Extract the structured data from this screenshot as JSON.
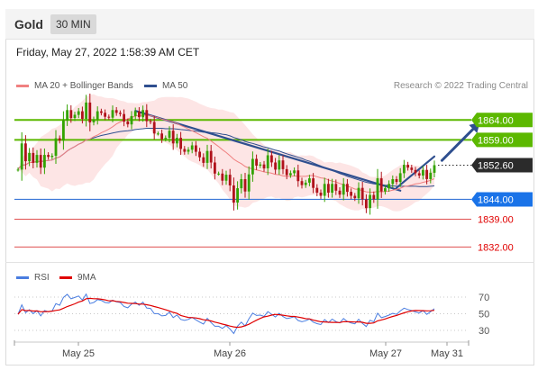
{
  "header": {
    "title": "Gold",
    "timeframe": "30 MIN"
  },
  "datetime": "Friday, May 27, 2022 1:58:39 AM CET",
  "credit": "Research © 2022 Trading Central",
  "colors": {
    "ma20": "#f08080",
    "ma50": "#2f4f8f",
    "bollinger_fill": "#fde0e0",
    "candle_up": "#33a300",
    "candle_down": "#b0121b",
    "resistance": "#5cb800",
    "pivot": "#3c78d8",
    "support": "#e05050",
    "current": "#2b2b2b",
    "rsi": "#4a7de0",
    "rsi_ma": "#e00000"
  },
  "legend": {
    "ma20": "MA 20 + Bollinger Bands",
    "ma50": "MA 50",
    "rsi": "RSI",
    "rsi_ma": "9MA"
  },
  "chart_data": [
    {
      "type": "candlestick",
      "ylim": [
        1828,
        1872
      ],
      "x_ticks": [
        "May 25",
        "May 26",
        "May 27",
        "May 31"
      ],
      "levels": [
        {
          "label": "1864.00",
          "value": 1864.0,
          "kind": "resistance"
        },
        {
          "label": "1859.00",
          "value": 1859.0,
          "kind": "resistance"
        },
        {
          "label": "1852.60",
          "value": 1852.6,
          "kind": "current"
        },
        {
          "label": "1844.00",
          "value": 1844.0,
          "kind": "pivot"
        },
        {
          "label": "1839.00",
          "value": 1839.0,
          "kind": "support"
        },
        {
          "label": "1832.00",
          "value": 1832.0,
          "kind": "support"
        }
      ],
      "close": [
        1851.5,
        1858.1,
        1853.6,
        1855.7,
        1853.2,
        1855.2,
        1852.0,
        1855.2,
        1854.7,
        1855.0,
        1859.4,
        1858.8,
        1863.9,
        1866.5,
        1864.5,
        1865.3,
        1866.2,
        1864.3,
        1868.4,
        1863.4,
        1864.1,
        1866.2,
        1865.8,
        1864.8,
        1864.6,
        1866.5,
        1865.8,
        1865.5,
        1863.6,
        1862.9,
        1865.0,
        1866.2,
        1864.7,
        1866.5,
        1863.7,
        1863.5,
        1860.6,
        1860.6,
        1859.2,
        1859.5,
        1861.3,
        1858.1,
        1859.5,
        1856.7,
        1856.0,
        1856.5,
        1857.6,
        1856.0,
        1854.6,
        1853.2,
        1856.2,
        1853.3,
        1850.5,
        1850.5,
        1848.7,
        1850.2,
        1847.5,
        1843.2,
        1846.8,
        1849.1,
        1846.0,
        1850.3,
        1854.2,
        1852.5,
        1852.8,
        1851.8,
        1855.1,
        1853.3,
        1851.5,
        1853.8,
        1851.6,
        1850.1,
        1850.6,
        1851.3,
        1848.6,
        1847.6,
        1848.2,
        1849.3,
        1846.9,
        1845.7,
        1844.9,
        1847.9,
        1845.7,
        1847.9,
        1846.2,
        1845.2,
        1847.9,
        1845.9,
        1844.9,
        1844.3,
        1846.9,
        1844.0,
        1841.8,
        1845.1,
        1844.0,
        1849.3,
        1846.0,
        1846.8,
        1847.9,
        1849.1,
        1848.4,
        1850.6,
        1852.7,
        1852.0,
        1851.4,
        1850.6,
        1850.0,
        1851.4,
        1849.1,
        1850.7,
        1852.6
      ],
      "ma20": [
        1851.6,
        1852.6,
        1852.7,
        1853.3,
        1853.3,
        1853.6,
        1853.5,
        1853.7,
        1853.8,
        1853.9,
        1854.4,
        1854.7,
        1855.4,
        1856.2,
        1856.8,
        1857.3,
        1857.9,
        1858.3,
        1859.0,
        1859.2,
        1859.8,
        1860.2,
        1860.8,
        1861.2,
        1861.7,
        1862.3,
        1863.0,
        1863.5,
        1863.9,
        1864.3,
        1864.6,
        1865.0,
        1865.1,
        1865.2,
        1865.2,
        1865.1,
        1864.8,
        1864.6,
        1864.2,
        1864.0,
        1863.8,
        1863.4,
        1863.1,
        1862.6,
        1862.2,
        1861.7,
        1861.3,
        1860.8,
        1860.3,
        1859.8,
        1859.4,
        1858.7,
        1858.0,
        1857.3,
        1856.5,
        1855.8,
        1855.0,
        1854.1,
        1853.5,
        1853.0,
        1852.3,
        1851.9,
        1851.7,
        1851.4,
        1851.2,
        1850.9,
        1850.8,
        1850.6,
        1850.3,
        1850.2,
        1849.9,
        1849.8,
        1849.8,
        1849.9,
        1849.8,
        1849.8,
        1849.8,
        1850.0,
        1850.0,
        1849.7,
        1849.4,
        1849.3,
        1848.9,
        1848.6,
        1848.4,
        1848.0,
        1847.7,
        1847.3,
        1847.0,
        1846.6,
        1846.5,
        1846.2,
        1845.9,
        1845.8,
        1845.8,
        1846.0,
        1845.9,
        1846.0,
        1846.1,
        1846.3,
        1846.5,
        1846.8,
        1847.2,
        1847.4,
        1847.6,
        1847.9,
        1848.0,
        1848.3,
        1848.5,
        1848.8,
        1849.2
      ],
      "ma50": [
        1851.6,
        1852.6,
        1852.7,
        1853.3,
        1853.3,
        1853.6,
        1853.5,
        1853.7,
        1853.8,
        1853.9,
        1854.4,
        1854.7,
        1855.4,
        1856.2,
        1856.8,
        1857.3,
        1857.9,
        1858.3,
        1859.0,
        1859.2,
        1859.5,
        1859.8,
        1860.1,
        1860.3,
        1860.5,
        1860.7,
        1860.9,
        1861.1,
        1861.2,
        1861.3,
        1861.4,
        1861.6,
        1861.7,
        1861.8,
        1861.9,
        1861.9,
        1861.9,
        1861.9,
        1861.9,
        1861.8,
        1861.8,
        1861.8,
        1861.7,
        1861.6,
        1861.5,
        1861.4,
        1861.3,
        1861.2,
        1861.1,
        1860.9,
        1861.0,
        1860.8,
        1860.7,
        1860.6,
        1860.4,
        1860.3,
        1860.0,
        1859.6,
        1859.3,
        1859.0,
        1858.6,
        1858.3,
        1858.1,
        1857.8,
        1857.5,
        1857.2,
        1857.0,
        1856.7,
        1856.4,
        1856.2,
        1855.8,
        1855.5,
        1855.2,
        1854.9,
        1854.6,
        1854.3,
        1853.9,
        1853.6,
        1853.2,
        1852.8,
        1852.4,
        1852.0,
        1851.6,
        1851.3,
        1850.9,
        1850.5,
        1850.2,
        1849.8,
        1849.5,
        1849.2,
        1848.9,
        1848.6,
        1848.3,
        1848.1,
        1847.9,
        1847.8,
        1847.7,
        1847.6,
        1847.5,
        1847.4,
        1847.3,
        1847.3,
        1847.3,
        1847.3,
        1847.3,
        1847.3,
        1847.2,
        1847.2,
        1847.2,
        1847.3,
        1847.4
      ],
      "bb_upper": [
        1851.6,
        1854.2,
        1855.7,
        1856.0,
        1857.1,
        1858.2,
        1859.7,
        1860.3,
        1860.9,
        1861.8,
        1862.1,
        1862.7,
        1863.4,
        1864.4,
        1866.0,
        1867.3,
        1868.0,
        1868.8,
        1869.8,
        1870.3,
        1870.5,
        1870.0,
        1869.9,
        1869.6,
        1869.5,
        1869.5,
        1869.2,
        1868.9,
        1868.7,
        1868.3,
        1868.3,
        1868.2,
        1868.2,
        1868.5,
        1868.5,
        1868.7,
        1868.9,
        1869.5,
        1869.7,
        1869.8,
        1869.8,
        1869.8,
        1869.7,
        1869.8,
        1869.6,
        1869.4,
        1869.0,
        1868.6,
        1868.1,
        1867.7,
        1867.3,
        1867.0,
        1866.9,
        1866.6,
        1866.6,
        1866.3,
        1866.0,
        1865.8,
        1864.8,
        1863.8,
        1862.7,
        1861.6,
        1860.4,
        1859.5,
        1858.6,
        1857.7,
        1857.0,
        1856.5,
        1856.4,
        1856.0,
        1855.9,
        1855.9,
        1855.9,
        1855.3,
        1855.0,
        1855.1,
        1855.0,
        1855.1,
        1854.9,
        1854.3,
        1853.9,
        1853.3,
        1853.4,
        1853.4,
        1853.1,
        1853.3,
        1853.0,
        1852.8,
        1852.5,
        1852.1,
        1851.7,
        1850.8,
        1850.4,
        1849.7,
        1849.6,
        1849.7,
        1849.6,
        1850.0,
        1850.7,
        1851.4,
        1852.0,
        1852.6,
        1852.8,
        1852.8,
        1852.7,
        1852.5,
        1852.4,
        1852.0,
        1851.6,
        1851.2,
        1850.8
      ],
      "bb_lower": [
        1851.6,
        1850.9,
        1849.8,
        1850.7,
        1849.6,
        1849.0,
        1847.3,
        1847.0,
        1846.7,
        1846.0,
        1846.7,
        1846.6,
        1847.4,
        1848.0,
        1847.6,
        1847.4,
        1847.7,
        1847.8,
        1848.2,
        1848.2,
        1849.0,
        1850.5,
        1851.7,
        1852.9,
        1853.8,
        1855.0,
        1856.9,
        1858.1,
        1859.0,
        1860.3,
        1860.9,
        1861.7,
        1862.0,
        1861.9,
        1861.9,
        1861.5,
        1860.6,
        1859.6,
        1858.7,
        1858.3,
        1857.8,
        1857.0,
        1856.4,
        1855.5,
        1854.8,
        1854.0,
        1853.5,
        1853.1,
        1852.6,
        1851.9,
        1851.5,
        1850.4,
        1849.1,
        1848.0,
        1846.4,
        1845.3,
        1844.0,
        1842.5,
        1842.2,
        1842.1,
        1841.9,
        1842.2,
        1843.1,
        1843.4,
        1843.8,
        1844.2,
        1844.6,
        1844.7,
        1844.3,
        1844.4,
        1844.0,
        1843.6,
        1843.7,
        1844.5,
        1844.7,
        1844.5,
        1844.7,
        1845.0,
        1845.1,
        1845.2,
        1845.0,
        1845.2,
        1844.4,
        1843.8,
        1843.6,
        1842.8,
        1842.3,
        1841.8,
        1841.4,
        1841.2,
        1841.2,
        1841.6,
        1841.4,
        1841.8,
        1841.9,
        1842.3,
        1842.3,
        1842.0,
        1841.6,
        1841.1,
        1841.0,
        1841.1,
        1841.6,
        1842.0,
        1842.6,
        1843.3,
        1843.6,
        1844.6,
        1845.4,
        1846.3,
        1847.5
      ],
      "trendlines": [
        {
          "from": {
            "index": 31,
            "price": 1866.3
          },
          "to": {
            "index": 101,
            "price": 1846.2
          }
        },
        {
          "from": {
            "index": 100,
            "price": 1846.9
          },
          "to": {
            "index": 110,
            "price": 1854.8
          }
        }
      ],
      "forecast_arrow": {
        "from": {
          "index": 112,
          "price": 1853.8
        },
        "to": {
          "index": 122,
          "price": 1863.4
        }
      }
    },
    {
      "type": "line",
      "ylim": [
        20,
        80
      ],
      "y_ticks": [
        70,
        50,
        30
      ],
      "series": [
        {
          "name": "RSI",
          "values": [
            49.3,
            60.7,
            51.2,
            54.8,
            50.1,
            53.7,
            47.4,
            53.8,
            52.5,
            53.2,
            62.1,
            60.2,
            69.7,
            73.2,
            68.0,
            69.6,
            71.3,
            66.4,
            73.6,
            62.2,
            63.5,
            67.0,
            66.0,
            63.5,
            63.0,
            66.2,
            64.3,
            63.5,
            58.7,
            57.1,
            61.6,
            64.0,
            60.2,
            64.0,
            56.9,
            56.4,
            50.1,
            50.1,
            47.4,
            48.0,
            51.9,
            45.4,
            48.5,
            43.2,
            42.0,
            43.2,
            45.6,
            42.6,
            40.0,
            37.6,
            44.5,
            39.4,
            35.0,
            35.0,
            32.4,
            35.8,
            31.6,
            26.2,
            35.1,
            40.0,
            35.3,
            43.9,
            50.8,
            47.9,
            48.4,
            46.8,
            52.5,
            49.3,
            46.1,
            50.4,
            46.7,
            44.2,
            45.1,
            46.4,
            41.9,
            40.5,
            41.6,
            43.6,
            39.9,
            38.1,
            37.0,
            43.0,
            39.3,
            43.5,
            40.6,
            39.0,
            44.3,
            40.7,
            38.9,
            37.9,
            43.4,
            38.3,
            34.6,
            42.2,
            40.3,
            50.7,
            45.2,
            46.6,
            48.4,
            50.5,
            49.2,
            53.3,
            56.7,
            55.1,
            53.8,
            52.2,
            50.9,
            53.9,
            49.2,
            52.5,
            56.1
          ]
        },
        {
          "name": "9MA",
          "values": [
            49.3,
            55.0,
            53.7,
            54.0,
            53.2,
            53.3,
            52.4,
            52.6,
            52.6,
            53.1,
            54.0,
            54.7,
            56.6,
            58.7,
            60.2,
            61.9,
            64.0,
            65.4,
            68.1,
            68.5,
            68.1,
            67.9,
            67.4,
            66.6,
            65.5,
            65.7,
            64.8,
            64.4,
            63.5,
            62.7,
            62.4,
            62.2,
            61.6,
            61.6,
            60.8,
            60.0,
            58.6,
            57.5,
            56.2,
            54.8,
            53.3,
            51.6,
            50.4,
            47.9,
            46.7,
            45.6,
            45.3,
            44.9,
            44.1,
            42.8,
            42.2,
            41.4,
            40.0,
            38.9,
            37.6,
            36.5,
            35.2,
            34.2,
            33.7,
            34.2,
            35.6,
            37.3,
            39.8,
            42.2,
            44.4,
            46.2,
            47.1,
            48.4,
            49.2,
            48.8,
            48.3,
            47.5,
            46.9,
            46.8,
            46.0,
            45.1,
            44.1,
            43.8,
            42.3,
            41.3,
            40.4,
            40.2,
            39.8,
            39.6,
            39.6,
            39.4,
            40.5,
            40.4,
            40.3,
            40.1,
            40.3,
            39.7,
            38.5,
            38.5,
            39.0,
            41.5,
            42.5,
            43.7,
            45.3,
            46.8,
            48.0,
            49.6,
            51.1,
            52.4,
            53.3,
            53.9,
            53.8,
            53.7,
            53.5,
            53.6,
            54.1
          ]
        }
      ]
    }
  ]
}
